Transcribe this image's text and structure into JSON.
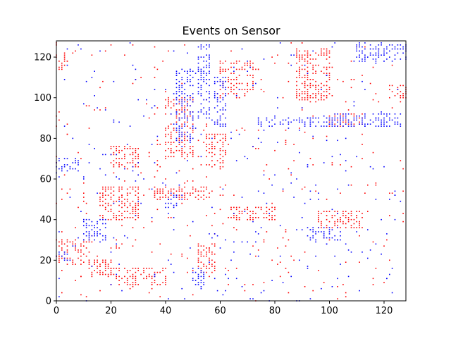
{
  "chart_data": {
    "type": "scatter",
    "title": "Events on Sensor",
    "xlabel": "",
    "ylabel": "",
    "xlim": [
      0,
      128
    ],
    "ylim": [
      0,
      128
    ],
    "x_ticks": [
      "0",
      "20",
      "40",
      "60",
      "80",
      "100",
      "120"
    ],
    "y_ticks": [
      "0",
      "20",
      "40",
      "60",
      "80",
      "100",
      "120"
    ],
    "grid": false,
    "legend": "none",
    "series": [
      {
        "polarity": "positive",
        "color": "#ff0000",
        "clusters": [
          {
            "x": [
              0,
              4
            ],
            "y": [
              114,
              122
            ]
          },
          {
            "x": [
              0,
              12
            ],
            "y": [
              18,
              30
            ]
          },
          {
            "x": [
              12,
              20
            ],
            "y": [
              12,
              20
            ]
          },
          {
            "x": [
              20,
              30
            ],
            "y": [
              66,
              76
            ]
          },
          {
            "x": [
              16,
              30
            ],
            "y": [
              40,
              56
            ]
          },
          {
            "x": [
              40,
              50
            ],
            "y": [
              70,
              100
            ]
          },
          {
            "x": [
              55,
              62
            ],
            "y": [
              66,
              82
            ]
          },
          {
            "x": [
              60,
              72
            ],
            "y": [
              100,
              118
            ]
          },
          {
            "x": [
              88,
              100
            ],
            "y": [
              98,
              124
            ]
          },
          {
            "x": [
              100,
              112
            ],
            "y": [
              86,
              92
            ]
          },
          {
            "x": [
              122,
              128
            ],
            "y": [
              100,
              106
            ]
          },
          {
            "x": [
              20,
              40
            ],
            "y": [
              8,
              16
            ]
          },
          {
            "x": [
              64,
              80
            ],
            "y": [
              40,
              46
            ]
          },
          {
            "x": [
              96,
              112
            ],
            "y": [
              36,
              44
            ]
          },
          {
            "x": [
              52,
              58
            ],
            "y": [
              14,
              28
            ]
          },
          {
            "x": [
              36,
              56
            ],
            "y": [
              50,
              56
            ]
          }
        ],
        "scattered_points": 360
      },
      {
        "polarity": "negative",
        "color": "#0000ff",
        "clusters": [
          {
            "x": [
              0,
              8
            ],
            "y": [
              64,
              70
            ]
          },
          {
            "x": [
              44,
              50
            ],
            "y": [
              78,
              114
            ]
          },
          {
            "x": [
              52,
              56
            ],
            "y": [
              90,
              126
            ]
          },
          {
            "x": [
              58,
              62
            ],
            "y": [
              86,
              110
            ]
          },
          {
            "x": [
              74,
              104
            ],
            "y": [
              86,
              90
            ]
          },
          {
            "x": [
              100,
              126
            ],
            "y": [
              86,
              92
            ]
          },
          {
            "x": [
              10,
              18
            ],
            "y": [
              30,
              40
            ]
          },
          {
            "x": [
              40,
              46
            ],
            "y": [
              46,
              52
            ]
          },
          {
            "x": [
              50,
              54
            ],
            "y": [
              6,
              16
            ]
          },
          {
            "x": [
              90,
              104
            ],
            "y": [
              30,
              36
            ]
          },
          {
            "x": [
              110,
              128
            ],
            "y": [
              118,
              126
            ]
          },
          {
            "x": [
              0,
              6
            ],
            "y": [
              20,
              24
            ]
          }
        ],
        "scattered_points": 320
      }
    ]
  }
}
